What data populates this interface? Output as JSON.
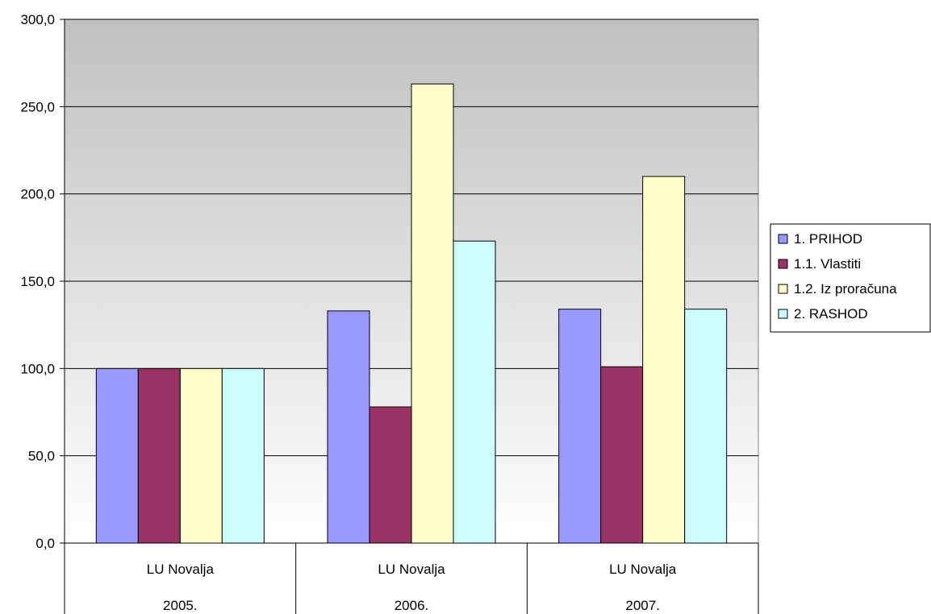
{
  "chart_data": {
    "type": "bar",
    "title": "",
    "xlabel": "",
    "ylabel": "",
    "ylim": [
      0,
      300
    ],
    "yticks": [
      "0,0",
      "50,0",
      "100,0",
      "150,0",
      "200,0",
      "250,0",
      "300,0"
    ],
    "ytick_values": [
      0,
      50,
      100,
      150,
      200,
      250,
      300
    ],
    "grid": true,
    "legend_position": "right",
    "categories": [
      {
        "label": "LU Novalja",
        "year": "2005."
      },
      {
        "label": "LU Novalja",
        "year": "2006."
      },
      {
        "label": "LU Novalja",
        "year": "2007."
      }
    ],
    "series": [
      {
        "name": "1. PRIHOD",
        "color": "#9999ff",
        "values": [
          100,
          133,
          134
        ]
      },
      {
        "name": "1.1. Vlastiti",
        "color": "#993366",
        "values": [
          100,
          78,
          101
        ]
      },
      {
        "name": "1.2. Iz proračuna",
        "color": "#ffffcc",
        "values": [
          100,
          263,
          210
        ]
      },
      {
        "name": "2. RASHOD",
        "color": "#ccffff",
        "values": [
          100,
          173,
          134
        ]
      }
    ],
    "plot_background_gradient": [
      "#c0c0c0",
      "#ffffff"
    ]
  }
}
